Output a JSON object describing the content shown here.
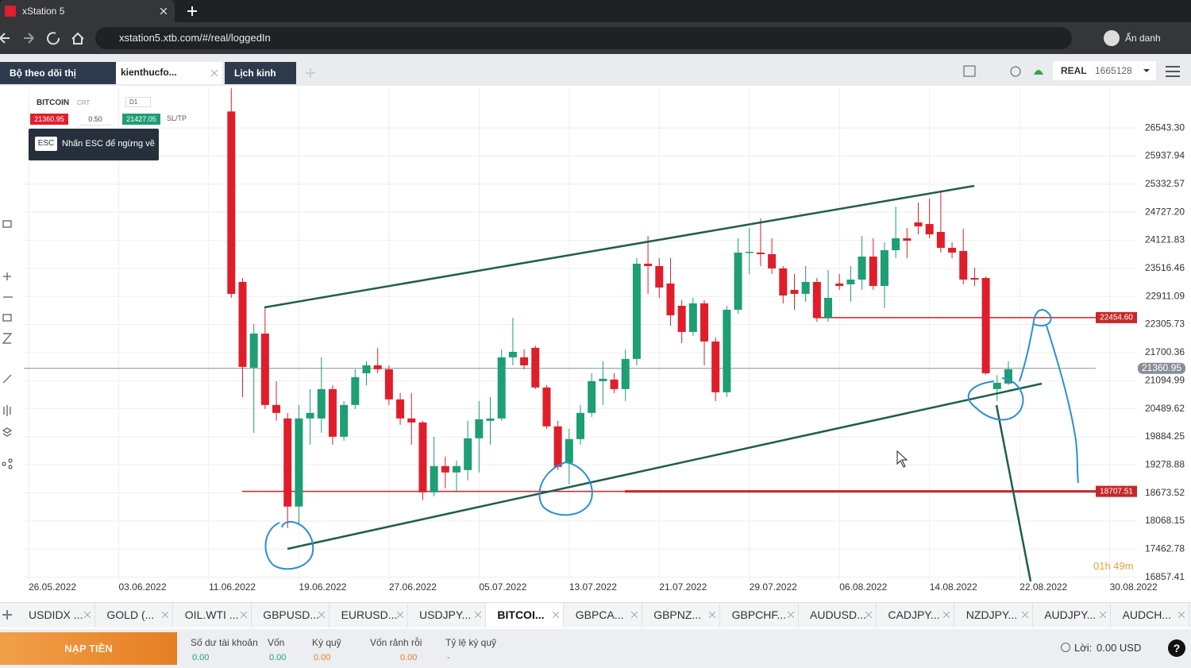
{
  "browser": {
    "tab_title": "xStation 5",
    "url": "xstation5.xtb.com/#/real/loggedIn",
    "profile": "Ẩn danh"
  },
  "app_tabs": [
    "Bộ theo dõi thị trường",
    "kienthucfo...",
    "Lịch kinh tế"
  ],
  "account": {
    "mode": "REAL",
    "number": "1665128"
  },
  "instrument": {
    "symbol": "BITCOIN",
    "tag": "CRT",
    "timeframe": "D1",
    "sell": "21360.95",
    "spread": "0.50",
    "buy": "21427.05",
    "sltp": "SL/TP"
  },
  "hint": {
    "key": "ESC",
    "text": "Nhấn ESC để ngừng vẽ"
  },
  "chart_data": {
    "type": "candlestick",
    "x": [
      "13.06.2022",
      "14.06.2022",
      "15.06.2022",
      "16.06.2022",
      "17.06.2022",
      "18.06.2022",
      "19.06.2022",
      "20.06.2022",
      "21.06.2022",
      "22.06.2022",
      "23.06.2022",
      "24.06.2022",
      "25.06.2022",
      "26.06.2022",
      "27.06.2022",
      "28.06.2022",
      "29.06.2022",
      "30.06.2022",
      "01.07.2022",
      "02.07.2022",
      "03.07.2022",
      "04.07.2022",
      "05.07.2022",
      "06.07.2022",
      "07.07.2022",
      "08.07.2022",
      "09.07.2022",
      "10.07.2022",
      "11.07.2022",
      "12.07.2022",
      "13.07.2022",
      "14.07.2022",
      "15.07.2022",
      "16.07.2022",
      "17.07.2022",
      "18.07.2022",
      "19.07.2022",
      "20.07.2022",
      "21.07.2022",
      "22.07.2022",
      "23.07.2022",
      "24.07.2022",
      "25.07.2022",
      "26.07.2022",
      "27.07.2022",
      "28.07.2022",
      "29.07.2022",
      "30.07.2022",
      "31.07.2022",
      "01.08.2022",
      "02.08.2022",
      "03.08.2022",
      "04.08.2022",
      "05.08.2022",
      "06.08.2022",
      "07.08.2022",
      "08.08.2022",
      "09.08.2022",
      "10.08.2022",
      "11.08.2022",
      "12.08.2022",
      "13.08.2022",
      "14.08.2022",
      "15.08.2022",
      "16.08.2022",
      "17.08.2022",
      "18.08.2022",
      "19.08.2022",
      "20.08.2022",
      "21.08.2022"
    ],
    "open": [
      26900,
      23224,
      21375,
      22111,
      20571,
      20280,
      18380,
      20280,
      20280,
      20913,
      19886,
      20571,
      21255,
      21426,
      21341,
      20691,
      20280,
      20194,
      18688,
      19253,
      19116,
      19167,
      19852,
      20229,
      20280,
      21598,
      21598,
      21803,
      20948,
      20109,
      19322,
      19835,
      20400,
      21084,
      21119,
      20913,
      21563,
      23617,
      23566,
      23190,
      22710,
      22145,
      22762,
      21940,
      20845,
      22625,
      23857,
      23857,
      23823,
      23515,
      23053,
      22967,
      23224,
      22454,
      23190,
      23172,
      23275,
      23771,
      23138,
      23908,
      24165,
      24507,
      24473,
      24302,
      23959,
      23891,
      23309,
      23309,
      20913,
      21033
    ],
    "high": [
      27400,
      23309,
      22317,
      22659,
      21084,
      20400,
      20571,
      20913,
      21598,
      20999,
      20656,
      21341,
      21512,
      21803,
      21426,
      20828,
      20828,
      20229,
      19886,
      19458,
      19373,
      20229,
      20656,
      20742,
      21769,
      22454,
      21769,
      21850,
      21000,
      20229,
      20058,
      20571,
      21255,
      21512,
      21255,
      21769,
      23737,
      24216,
      23737,
      23737,
      22830,
      22881,
      22830,
      22025,
      22710,
      24165,
      24387,
      24592,
      24165,
      23566,
      23395,
      23566,
      23309,
      23480,
      23395,
      23566,
      24216,
      24165,
      24079,
      24849,
      24387,
      24935,
      25020,
      25191,
      24079,
      24370,
      23532,
      23343,
      21212,
      21512
    ],
    "low": [
      22880,
      20742,
      19972,
      20485,
      20229,
      17918,
      18004,
      19715,
      19972,
      19715,
      19800,
      20485,
      20999,
      21255,
      20571,
      20143,
      19715,
      18517,
      18603,
      18774,
      18688,
      18945,
      19116,
      19715,
      20229,
      21426,
      21341,
      20913,
      20058,
      19167,
      18860,
      19715,
      20314,
      20571,
      20828,
      20656,
      21426,
      22966,
      22881,
      22282,
      21906,
      22060,
      21426,
      20656,
      20742,
      22540,
      23395,
      23566,
      23395,
      22761,
      22625,
      22796,
      22368,
      22368,
      23053,
      22796,
      23053,
      23053,
      22659,
      23737,
      23737,
      24250,
      24165,
      23857,
      23737,
      23172,
      23138,
      21221,
      20656,
      20999
    ],
    "close": [
      22966,
      21392,
      22111,
      20571,
      20400,
      18380,
      20280,
      20400,
      20913,
      19886,
      20571,
      21170,
      21426,
      21341,
      20691,
      20280,
      20194,
      18688,
      19253,
      19116,
      19253,
      19852,
      20263,
      20280,
      21598,
      21717,
      21426,
      20948,
      20109,
      19236,
      19835,
      20400,
      21084,
      21136,
      20913,
      21563,
      23617,
      23566,
      23104,
      22505,
      22145,
      22762,
      21940,
      20845,
      22625,
      23857,
      23874,
      23823,
      23515,
      22932,
      22967,
      23224,
      22454,
      22881,
      23138,
      23275,
      23771,
      23138,
      23908,
      24165,
      24113,
      24421,
      24250,
      23959,
      23857,
      23275,
      23275,
      21255,
      21050,
      21341
    ],
    "up_color": "#1e9e74",
    "down_color": "#e01e2b",
    "xlim": [
      "26.05.2022",
      "01.09.2022"
    ],
    "xticks": [
      "26.05.2022",
      "03.06.2022",
      "11.06.2022",
      "19.06.2022",
      "27.06.2022",
      "05.07.2022",
      "13.07.2022",
      "21.07.2022",
      "29.07.2022",
      "06.08.2022",
      "14.08.2022",
      "22.08.2022",
      "30.08.2022"
    ],
    "ylim": [
      16800,
      27420
    ],
    "yticks": [
      {
        "value": 26543.3,
        "label": "26543.30"
      },
      25937.94,
      25332.57,
      {
        "value": 24727.2,
        "label": "24727.20"
      },
      24121.83,
      23516.46,
      22911.09,
      22305.73,
      21700.36,
      21094.99,
      20489.62,
      19884.25,
      19278.88,
      18673.52,
      18068.15,
      17462.78,
      16857.41
    ],
    "grid": true,
    "price_lines": [
      {
        "value": 22454.6,
        "label": "22454.60",
        "color": "#c62828"
      },
      {
        "value": 21360.95,
        "label": "21360.95",
        "color": "#8a8f96"
      },
      {
        "value": 18707.51,
        "label": "18707.51",
        "color": "#c62828"
      }
    ]
  },
  "timer": "01h 49m",
  "symbol_tabs": [
    "USDIDX ...",
    "GOLD (...",
    "OIL.WTI ...",
    "GBPUSD...",
    "EURUSD...",
    "USDJPY...",
    "BITCOI...",
    "GBPCA...",
    "GBPNZ...",
    "GBPCHF...",
    "AUDUSD...",
    "CADJPY...",
    "NZDJPY...",
    "AUDJPY...",
    "AUDCH..."
  ],
  "footer": {
    "deposit": "NẠP TIỀN",
    "fields": [
      {
        "label": "Số dư tài khoản",
        "value": "0.00"
      },
      {
        "label": "Vốn",
        "value": "0.00"
      },
      {
        "label": "Ký quỹ",
        "value": "0.00"
      },
      {
        "label": "Vốn rảnh rỗi",
        "value": "0.00"
      },
      {
        "label": "Tỷ lệ ký quỹ",
        "value": "-"
      }
    ],
    "profit_label": "Lời:",
    "profit_value": "0.00 USD",
    "help": "?"
  }
}
